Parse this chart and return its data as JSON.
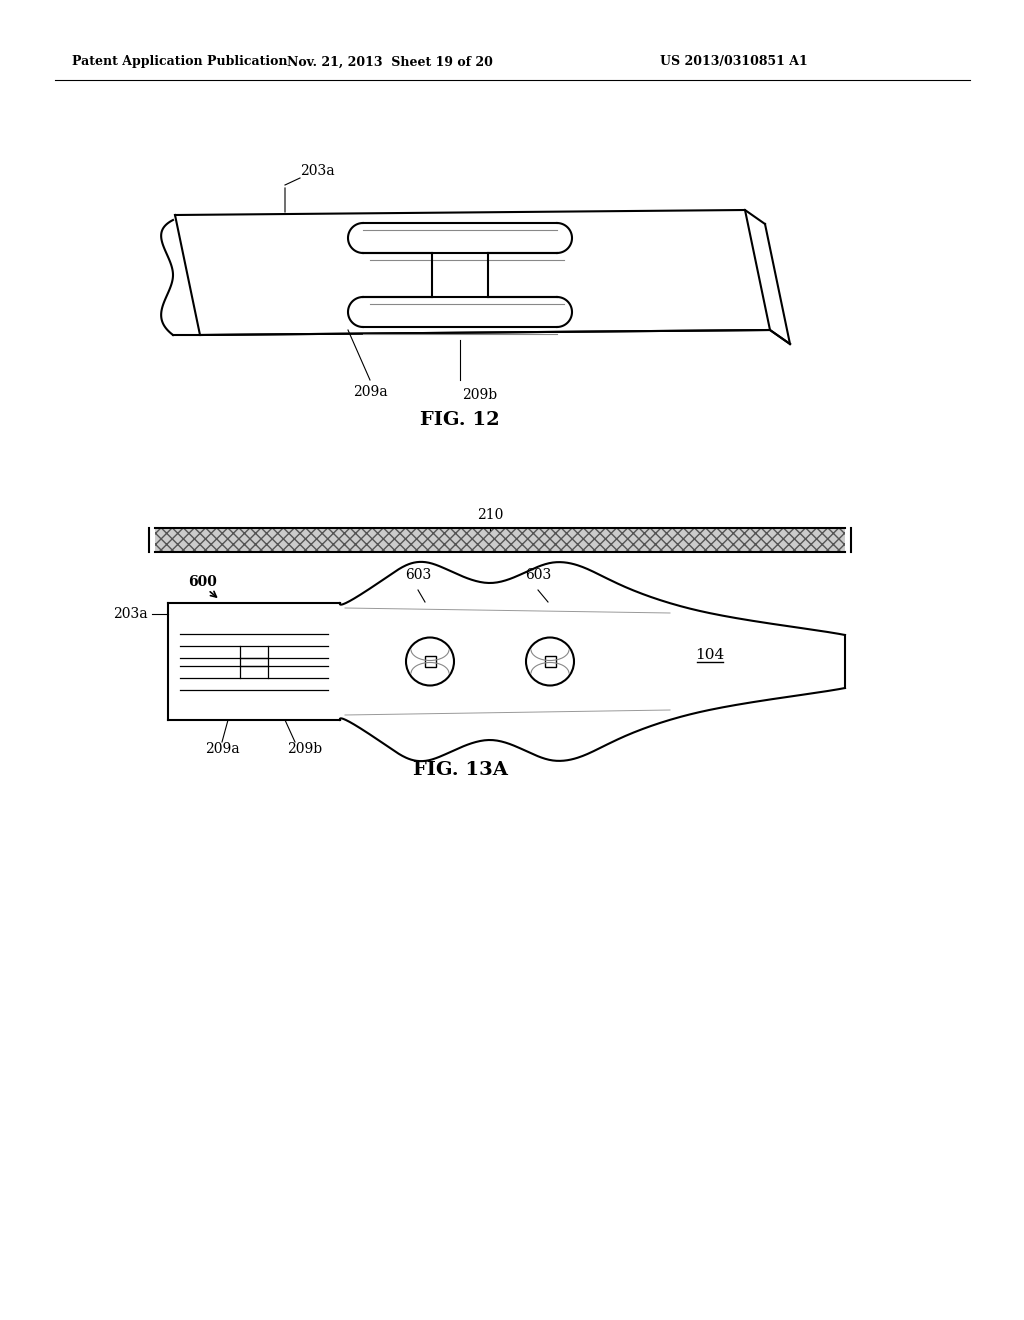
{
  "bg_color": "#ffffff",
  "header_left": "Patent Application Publication",
  "header_mid": "Nov. 21, 2013  Sheet 19 of 20",
  "header_right": "US 2013/0310851 A1",
  "fig12_label": "FIG. 12",
  "fig13a_label": "FIG. 13A",
  "label_203a_fig12": "203a",
  "label_209a_fig12": "209a",
  "label_209b_fig12": "209b",
  "label_210": "210",
  "label_600": "600",
  "label_603_1": "603",
  "label_603_2": "603",
  "label_203a_fig13": "203a",
  "label_209a_fig13": "209a",
  "label_209b_fig13": "209b",
  "label_104": "104",
  "line_color": "#000000"
}
